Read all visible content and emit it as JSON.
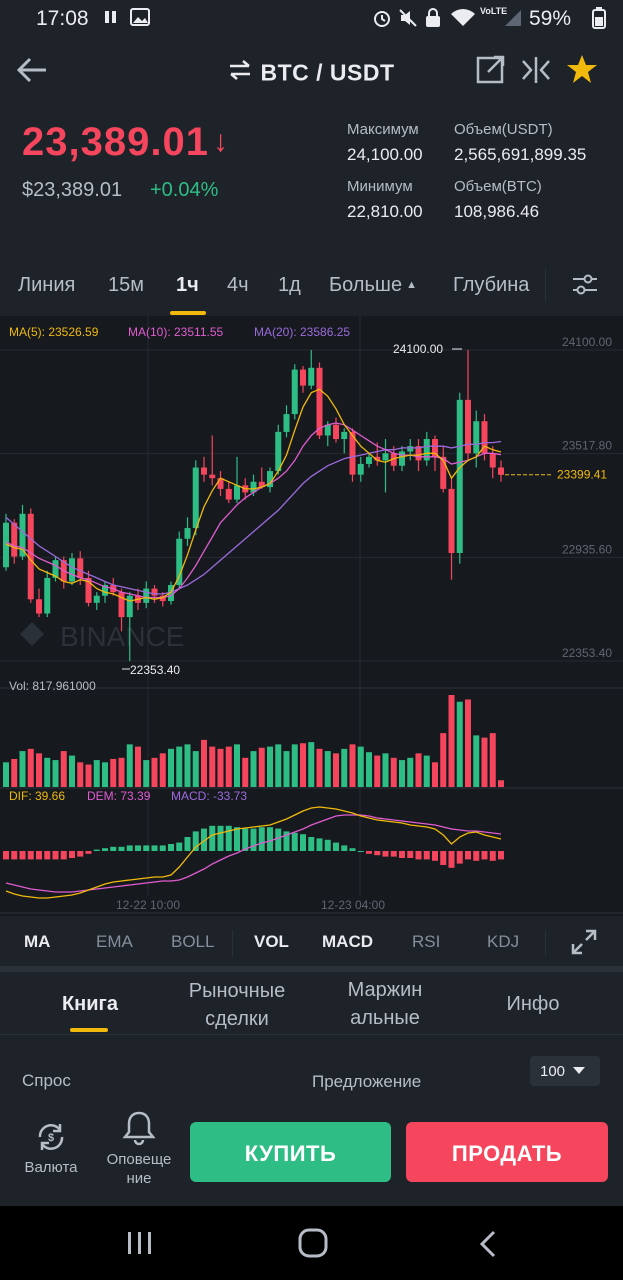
{
  "status_bar": {
    "time": "17:08",
    "battery": "59%",
    "network_label": "VoLTE"
  },
  "header": {
    "pair": "BTC / USDT"
  },
  "ticker": {
    "last_price": "23,389.01",
    "usd_price": "$23,389.01",
    "change_pct": "+0.04%",
    "high_label": "Максимум",
    "high_value": "24,100.00",
    "low_label": "Минимум",
    "low_value": "22,810.00",
    "vol_usdt_label": "Объем(USDT)",
    "vol_usdt_value": "2,565,691,899.35",
    "vol_btc_label": "Объем(BTC)",
    "vol_btc_value": "108,986.46"
  },
  "timeframes": {
    "items": [
      "Линия",
      "15м",
      "1ч",
      "4ч",
      "1д",
      "Больше",
      "Глубина"
    ],
    "active": "1ч"
  },
  "chart": {
    "ma5_label": "MA(5): 23526.59",
    "ma10_label": "MA(10): 23511.55",
    "ma20_label": "MA(20): 23586.25",
    "price_axis": [
      "24100.00",
      "23517.80",
      "22935.60",
      "22353.40"
    ],
    "high_marker": "24100.00",
    "low_marker": "22353.40",
    "last_marker": "23399.41",
    "watermark": "BINANCE",
    "vol_label": "Vol: 817.961000",
    "dif_label": "DIF: 39.66",
    "dem_label": "DEM: 73.39",
    "macd_label": "MACD: -33.73",
    "time_labels": [
      "12-22 10:00",
      "12-23 04:00"
    ],
    "colors": {
      "up": "#2ebd85",
      "down": "#f6465d",
      "ma5": "#f0b90b",
      "ma10": "#e05cd0",
      "ma20": "#9c6ade",
      "background": "#161a1e"
    }
  },
  "chart_data": {
    "type": "candlestick",
    "y_range": [
      22353.4,
      24100.0
    ],
    "candles": [
      {
        "o": 22880,
        "c": 23130,
        "h": 23180,
        "l": 22860
      },
      {
        "o": 23130,
        "c": 22940,
        "h": 23150,
        "l": 22900
      },
      {
        "o": 22940,
        "c": 23180,
        "h": 23230,
        "l": 22920
      },
      {
        "o": 23180,
        "c": 22700,
        "h": 23210,
        "l": 22680
      },
      {
        "o": 22700,
        "c": 22620,
        "h": 22760,
        "l": 22600
      },
      {
        "o": 22620,
        "c": 22820,
        "h": 22860,
        "l": 22600
      },
      {
        "o": 22820,
        "c": 22920,
        "h": 22940,
        "l": 22800
      },
      {
        "o": 22920,
        "c": 22800,
        "h": 22940,
        "l": 22760
      },
      {
        "o": 22800,
        "c": 22930,
        "h": 22960,
        "l": 22780
      },
      {
        "o": 22930,
        "c": 22820,
        "h": 22970,
        "l": 22780
      },
      {
        "o": 22820,
        "c": 22680,
        "h": 22860,
        "l": 22660
      },
      {
        "o": 22680,
        "c": 22720,
        "h": 22740,
        "l": 22640
      },
      {
        "o": 22720,
        "c": 22780,
        "h": 22800,
        "l": 22680
      },
      {
        "o": 22780,
        "c": 22740,
        "h": 22820,
        "l": 22720
      },
      {
        "o": 22740,
        "c": 22600,
        "h": 22760,
        "l": 22520
      },
      {
        "o": 22600,
        "c": 22720,
        "h": 22740,
        "l": 22353
      },
      {
        "o": 22720,
        "c": 22680,
        "h": 22760,
        "l": 22640
      },
      {
        "o": 22680,
        "c": 22760,
        "h": 22800,
        "l": 22650
      },
      {
        "o": 22760,
        "c": 22720,
        "h": 22780,
        "l": 22680
      },
      {
        "o": 22720,
        "c": 22690,
        "h": 22740,
        "l": 22660
      },
      {
        "o": 22690,
        "c": 22780,
        "h": 22800,
        "l": 22670
      },
      {
        "o": 22780,
        "c": 23040,
        "h": 23080,
        "l": 22760
      },
      {
        "o": 23040,
        "c": 23100,
        "h": 23160,
        "l": 23000
      },
      {
        "o": 23100,
        "c": 23440,
        "h": 23480,
        "l": 23060
      },
      {
        "o": 23440,
        "c": 23400,
        "h": 23500,
        "l": 23360
      },
      {
        "o": 23400,
        "c": 23380,
        "h": 23620,
        "l": 23340
      },
      {
        "o": 23380,
        "c": 23320,
        "h": 23420,
        "l": 23280
      },
      {
        "o": 23320,
        "c": 23260,
        "h": 23360,
        "l": 23240
      },
      {
        "o": 23260,
        "c": 23340,
        "h": 23500,
        "l": 23240
      },
      {
        "o": 23340,
        "c": 23300,
        "h": 23380,
        "l": 23260
      },
      {
        "o": 23300,
        "c": 23360,
        "h": 23400,
        "l": 23280
      },
      {
        "o": 23360,
        "c": 23330,
        "h": 23440,
        "l": 23320
      },
      {
        "o": 23330,
        "c": 23420,
        "h": 23440,
        "l": 23300
      },
      {
        "o": 23420,
        "c": 23640,
        "h": 23680,
        "l": 23400
      },
      {
        "o": 23640,
        "c": 23740,
        "h": 23790,
        "l": 23610
      },
      {
        "o": 23740,
        "c": 23990,
        "h": 24020,
        "l": 23710
      },
      {
        "o": 23990,
        "c": 23900,
        "h": 24010,
        "l": 23860
      },
      {
        "o": 23900,
        "c": 24000,
        "h": 24100,
        "l": 23880
      },
      {
        "o": 24000,
        "c": 23620,
        "h": 24030,
        "l": 23600
      },
      {
        "o": 23620,
        "c": 23680,
        "h": 23700,
        "l": 23560
      },
      {
        "o": 23680,
        "c": 23600,
        "h": 23720,
        "l": 23580
      },
      {
        "o": 23600,
        "c": 23640,
        "h": 23660,
        "l": 23520
      },
      {
        "o": 23640,
        "c": 23400,
        "h": 23660,
        "l": 23360
      },
      {
        "o": 23400,
        "c": 23460,
        "h": 23500,
        "l": 23360
      },
      {
        "o": 23460,
        "c": 23500,
        "h": 23520,
        "l": 23440
      },
      {
        "o": 23500,
        "c": 23480,
        "h": 23580,
        "l": 23450
      },
      {
        "o": 23480,
        "c": 23520,
        "h": 23600,
        "l": 23300
      },
      {
        "o": 23520,
        "c": 23450,
        "h": 23560,
        "l": 23420
      },
      {
        "o": 23450,
        "c": 23530,
        "h": 23560,
        "l": 23420
      },
      {
        "o": 23530,
        "c": 23560,
        "h": 23600,
        "l": 23480
      },
      {
        "o": 23560,
        "c": 23480,
        "h": 23600,
        "l": 23420
      },
      {
        "o": 23480,
        "c": 23600,
        "h": 23640,
        "l": 23450
      },
      {
        "o": 23600,
        "c": 23500,
        "h": 23620,
        "l": 23420
      },
      {
        "o": 23500,
        "c": 23320,
        "h": 23560,
        "l": 23300
      },
      {
        "o": 23320,
        "c": 22960,
        "h": 23380,
        "l": 22810
      },
      {
        "o": 22960,
        "c": 23820,
        "h": 23860,
        "l": 22900
      },
      {
        "o": 23820,
        "c": 23520,
        "h": 24100,
        "l": 23480
      },
      {
        "o": 23520,
        "c": 23700,
        "h": 23760,
        "l": 23440
      },
      {
        "o": 23700,
        "c": 23520,
        "h": 23740,
        "l": 23480
      },
      {
        "o": 23520,
        "c": 23440,
        "h": 23560,
        "l": 23380
      },
      {
        "o": 23440,
        "c": 23399,
        "h": 23480,
        "l": 23360
      }
    ],
    "ma5": [
      23010,
      22990,
      22980,
      22920,
      22870,
      22850,
      22830,
      22800,
      22790,
      22810,
      22800,
      22760,
      22740,
      22730,
      22710,
      22690,
      22700,
      22710,
      22700,
      22710,
      22740,
      22830,
      22950,
      23090,
      23220,
      23310,
      23380,
      23360,
      23340,
      23320,
      23320,
      23330,
      23350,
      23420,
      23510,
      23650,
      23780,
      23860,
      23880,
      23840,
      23770,
      23680,
      23620,
      23560,
      23520,
      23480,
      23470,
      23490,
      23500,
      23510,
      23510,
      23520,
      23520,
      23480,
      23380,
      23440,
      23480,
      23500,
      23560,
      23540,
      23527
    ],
    "ma10": [
      23020,
      23000,
      22990,
      22960,
      22930,
      22910,
      22890,
      22860,
      22840,
      22820,
      22810,
      22790,
      22770,
      22760,
      22740,
      22730,
      22720,
      22710,
      22710,
      22710,
      22720,
      22760,
      22820,
      22890,
      22970,
      23050,
      23130,
      23180,
      23230,
      23270,
      23300,
      23330,
      23350,
      23380,
      23420,
      23480,
      23560,
      23620,
      23660,
      23680,
      23690,
      23680,
      23650,
      23620,
      23590,
      23560,
      23540,
      23520,
      23510,
      23510,
      23500,
      23500,
      23500,
      23490,
      23460,
      23470,
      23480,
      23500,
      23520,
      23520,
      23512
    ],
    "ma20": [
      23160,
      23120,
      23080,
      23040,
      23000,
      22970,
      22940,
      22910,
      22880,
      22860,
      22840,
      22820,
      22800,
      22780,
      22770,
      22760,
      22750,
      22740,
      22730,
      22730,
      22740,
      22760,
      22780,
      22810,
      22840,
      22880,
      22920,
      22960,
      23000,
      23040,
      23080,
      23120,
      23160,
      23200,
      23250,
      23300,
      23350,
      23390,
      23420,
      23450,
      23470,
      23490,
      23500,
      23510,
      23520,
      23530,
      23540,
      23540,
      23550,
      23550,
      23550,
      23560,
      23560,
      23560,
      23550,
      23560,
      23570,
      23570,
      23580,
      23580,
      23586
    ],
    "volume": [
      2.2,
      2.5,
      3.2,
      3.4,
      3.0,
      2.6,
      2.4,
      3.2,
      2.8,
      2.2,
      2.0,
      2.4,
      2.2,
      2.5,
      2.6,
      3.8,
      3.6,
      2.4,
      2.6,
      3.0,
      3.4,
      3.6,
      3.8,
      3.2,
      4.2,
      3.6,
      3.4,
      3.6,
      3.8,
      2.6,
      3.2,
      3.5,
      3.6,
      3.8,
      3.2,
      3.8,
      3.9,
      4.0,
      3.4,
      3.2,
      3.0,
      3.4,
      3.8,
      3.6,
      3.1,
      2.8,
      3.0,
      2.6,
      2.4,
      2.6,
      3.0,
      2.8,
      2.2,
      4.8,
      8.2,
      7.6,
      7.8,
      4.6,
      4.4,
      4.8,
      0.6
    ],
    "macd_hist": [
      -0.6,
      -0.6,
      -0.6,
      -0.6,
      -0.6,
      -0.6,
      -0.6,
      -0.6,
      -0.5,
      -0.4,
      -0.2,
      0.1,
      0.2,
      0.3,
      0.3,
      0.4,
      0.4,
      0.4,
      0.4,
      0.4,
      0.5,
      0.6,
      1.0,
      1.4,
      1.6,
      1.8,
      1.8,
      1.8,
      1.7,
      1.6,
      1.6,
      1.7,
      1.7,
      1.6,
      1.4,
      1.3,
      1.2,
      1.0,
      0.9,
      0.8,
      0.6,
      0.4,
      0.2,
      0.0,
      -0.2,
      -0.3,
      -0.4,
      -0.4,
      -0.5,
      -0.5,
      -0.6,
      -0.6,
      -0.7,
      -1.0,
      -1.2,
      -0.9,
      -0.6,
      -0.7,
      -0.6,
      -0.7,
      -0.6
    ],
    "dif": [
      -4.0,
      -4.3,
      -4.5,
      -4.6,
      -4.7,
      -4.7,
      -4.6,
      -4.5,
      -4.4,
      -4.2,
      -3.9,
      -3.6,
      -3.3,
      -3.1,
      -3.0,
      -2.9,
      -2.8,
      -2.7,
      -2.6,
      -2.6,
      -2.4,
      -1.6,
      -0.6,
      0.4,
      1.0,
      1.6,
      1.8,
      2.0,
      2.2,
      2.3,
      2.4,
      2.5,
      2.6,
      2.9,
      3.2,
      3.6,
      4.0,
      4.3,
      4.4,
      4.3,
      4.2,
      4.0,
      3.8,
      3.5,
      3.3,
      3.1,
      3.0,
      2.9,
      2.8,
      2.6,
      2.5,
      2.4,
      2.2,
      1.6,
      0.7,
      1.4,
      1.8,
      1.9,
      1.6,
      1.4,
      1.2
    ],
    "dem": [
      -3.2,
      -3.4,
      -3.6,
      -3.8,
      -3.9,
      -4.0,
      -4.1,
      -4.1,
      -4.1,
      -4.0,
      -3.9,
      -3.8,
      -3.7,
      -3.6,
      -3.5,
      -3.4,
      -3.3,
      -3.2,
      -3.1,
      -3.0,
      -3.0,
      -2.9,
      -2.6,
      -2.2,
      -1.8,
      -1.3,
      -0.9,
      -0.5,
      -0.2,
      0.2,
      0.5,
      0.8,
      1.0,
      1.3,
      1.6,
      1.9,
      2.2,
      2.6,
      2.9,
      3.2,
      3.5,
      3.6,
      3.6,
      3.6,
      3.5,
      3.3,
      3.2,
      3.1,
      3.0,
      2.9,
      2.8,
      2.7,
      2.6,
      2.4,
      2.2,
      2.1,
      2.0,
      2.0,
      1.9,
      1.8,
      1.7
    ]
  },
  "indicators": {
    "items": [
      "MA",
      "EMA",
      "BOLL",
      "VOL",
      "MACD",
      "RSI",
      "KDJ"
    ],
    "active": [
      "MA",
      "VOL",
      "MACD"
    ]
  },
  "bottom_tabs": {
    "book": "Книга",
    "trades_line1": "Рыночные",
    "trades_line2": "сделки",
    "margin_line1": "Маржин",
    "margin_line2": "альные",
    "info": "Инфо"
  },
  "orderbook": {
    "bid_label": "Спрос",
    "ask_label": "Предложение",
    "depth_value": "100"
  },
  "actions": {
    "currency_label": "Валюта",
    "alert_line1": "Оповеще",
    "alert_line2": "ние",
    "buy_label": "КУПИТЬ",
    "sell_label": "ПРОДАТЬ"
  }
}
